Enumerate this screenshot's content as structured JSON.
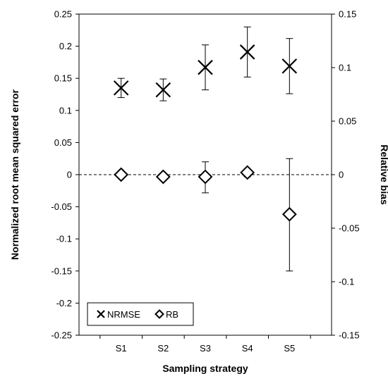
{
  "chart_data": {
    "type": "scatter",
    "title": "",
    "xlabel": "Sampling strategy",
    "ylabel_left": "Normalized root mean squared error",
    "ylabel_right": "Relative bias",
    "categories": [
      "S1",
      "S2",
      "S3",
      "S4",
      "S5"
    ],
    "ylim_left": [
      -0.25,
      0.25
    ],
    "yticks_left": [
      "-0.25",
      "-0.2",
      "-0.15",
      "-0.1",
      "-0.05",
      "0",
      "0.05",
      "0.1",
      "0.15",
      "0.2",
      "0.25"
    ],
    "ylim_right": [
      -0.15,
      0.15
    ],
    "yticks_right": [
      "-0.15",
      "-0.1",
      "-0.05",
      "0",
      "0.05",
      "0.1",
      "0.15"
    ],
    "grid": false,
    "zero_line": "dashed",
    "legend_position": "bottom-left",
    "series": [
      {
        "name": "NRMSE",
        "axis": "left",
        "marker": "x",
        "values": [
          0.135,
          0.132,
          0.167,
          0.191,
          0.169
        ],
        "err_low": [
          0.12,
          0.115,
          0.132,
          0.152,
          0.126
        ],
        "err_high": [
          0.15,
          0.149,
          0.202,
          0.23,
          0.212
        ]
      },
      {
        "name": "RB",
        "axis": "right",
        "marker": "diamond",
        "values": [
          0.0,
          -0.002,
          -0.002,
          0.002,
          -0.037
        ],
        "err_low": [
          0.0,
          -0.002,
          -0.017,
          -0.002,
          -0.09
        ],
        "err_high": [
          0.0,
          -0.002,
          0.012,
          0.005,
          0.015
        ]
      }
    ]
  }
}
